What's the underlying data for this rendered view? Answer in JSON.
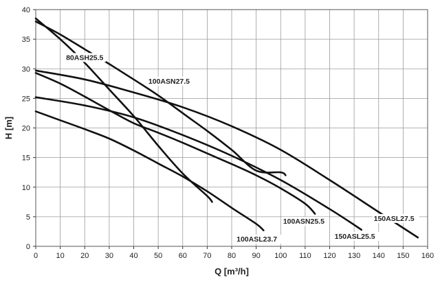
{
  "chart_data": {
    "type": "line",
    "title": "",
    "xlabel": "Q [m³/h]",
    "ylabel": "H [m]",
    "xlim": [
      0,
      160
    ],
    "ylim": [
      0,
      40
    ],
    "xticks": [
      0,
      10,
      20,
      30,
      40,
      50,
      60,
      70,
      80,
      90,
      100,
      110,
      120,
      130,
      140,
      150,
      160
    ],
    "yticks": [
      0,
      5,
      10,
      15,
      20,
      25,
      30,
      35,
      40
    ],
    "grid": true,
    "legend": "none (curves labeled inline)",
    "series": [
      {
        "name": "80ASH25.5",
        "x": [
          0,
          10,
          20,
          30,
          40,
          50,
          60,
          70,
          72
        ],
        "y": [
          38.5,
          35.0,
          31.0,
          26.5,
          22.0,
          17.0,
          12.3,
          8.5,
          7.5
        ]
      },
      {
        "name": "100ASN27.5",
        "x": [
          0,
          10,
          20,
          30,
          40,
          50,
          60,
          70,
          80,
          90,
          100,
          102
        ],
        "y": [
          38.0,
          35.8,
          33.3,
          30.8,
          28.2,
          25.5,
          22.5,
          19.5,
          16.3,
          12.8,
          12.5,
          12.0
        ]
      },
      {
        "name": "100ASN25.5",
        "x": [
          0,
          10,
          20,
          30,
          40,
          50,
          60,
          70,
          80,
          90,
          100,
          110,
          114
        ],
        "y": [
          29.3,
          27.5,
          25.3,
          23.0,
          20.8,
          19.2,
          17.5,
          15.7,
          13.9,
          12.0,
          9.8,
          7.2,
          5.5
        ]
      },
      {
        "name": "150ASL27.5",
        "x": [
          0,
          20,
          40,
          60,
          80,
          100,
          120,
          140,
          156
        ],
        "y": [
          29.7,
          28.2,
          26.0,
          23.5,
          20.3,
          16.3,
          11.2,
          5.8,
          1.5
        ]
      },
      {
        "name": "150ASL25.5",
        "x": [
          0,
          20,
          40,
          60,
          80,
          100,
          120,
          133
        ],
        "y": [
          25.2,
          23.8,
          21.8,
          18.8,
          15.3,
          11.2,
          6.3,
          2.8
        ]
      },
      {
        "name": "100ASL23.7",
        "x": [
          0,
          10,
          20,
          30,
          40,
          50,
          60,
          70,
          80,
          90,
          93
        ],
        "y": [
          22.8,
          21.3,
          19.8,
          18.2,
          16.2,
          14.0,
          11.8,
          9.3,
          6.5,
          3.8,
          2.7
        ]
      }
    ],
    "labels": [
      {
        "text": "80ASH25.5",
        "series": "80ASH25.5",
        "at": [
          20,
          31.5
        ],
        "anchor": "middle"
      },
      {
        "text": "100ASN27.5",
        "series": "100ASN27.5",
        "at": [
          46,
          27.5
        ],
        "anchor": "start"
      },
      {
        "text": "100ASN25.5",
        "series": "100ASN25.5",
        "at": [
          101,
          3.8
        ],
        "anchor": "start"
      },
      {
        "text": "150ASL27.5",
        "series": "150ASL27.5",
        "at": [
          138,
          4.3
        ],
        "anchor": "start"
      },
      {
        "text": "150ASL25.5",
        "series": "150ASL25.5",
        "at": [
          122,
          1.3
        ],
        "anchor": "start"
      },
      {
        "text": "100ASL23.7",
        "series": "100ASL23.7",
        "at": [
          82,
          0.8
        ],
        "anchor": "start"
      }
    ]
  }
}
